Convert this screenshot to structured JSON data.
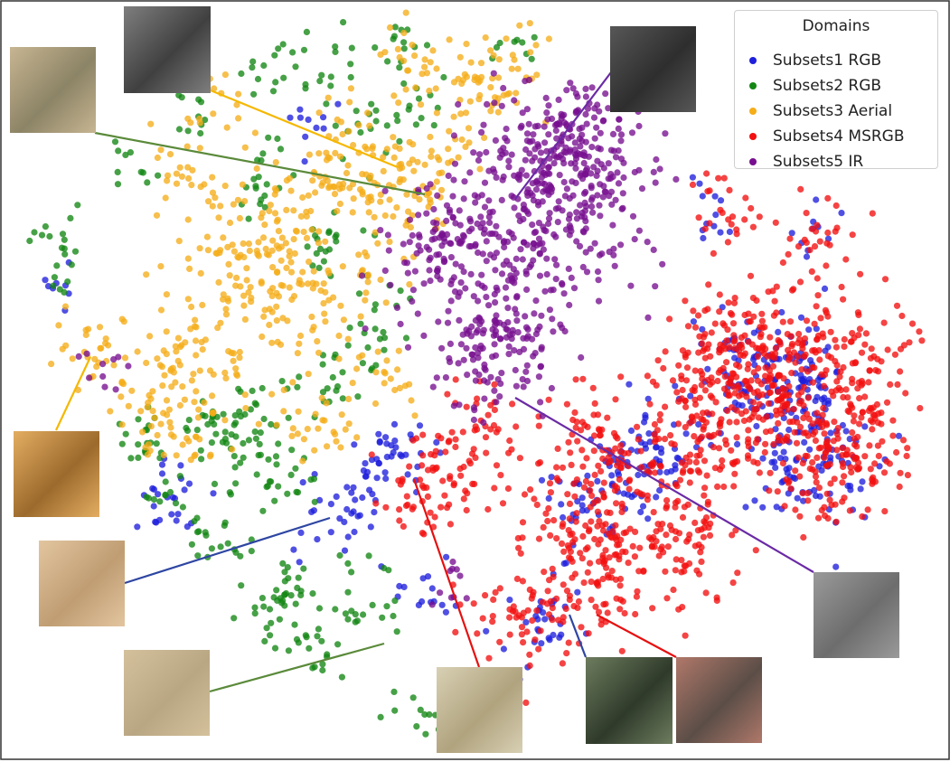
{
  "chart_data": {
    "type": "scatter",
    "title": "",
    "xlabel": "",
    "ylabel": "",
    "grid": false,
    "axes_ticks": false,
    "legend": {
      "title": "Domains",
      "placement": "top-right"
    },
    "series": [
      {
        "name": "Subsets1 RGB",
        "color": "#1f1fdc",
        "clusters": [
          [
            880,
            440,
            80
          ],
          [
            840,
            420,
            90
          ],
          [
            900,
            520,
            70
          ],
          [
            720,
            500,
            60
          ],
          [
            660,
            560,
            50
          ],
          [
            420,
            520,
            40
          ],
          [
            380,
            570,
            30
          ],
          [
            190,
            545,
            25
          ],
          [
            70,
            310,
            8
          ],
          [
            470,
            655,
            15
          ],
          [
            340,
            135,
            10
          ],
          [
            785,
            235,
            12
          ],
          [
            900,
            255,
            10
          ],
          [
            600,
            690,
            30
          ]
        ]
      },
      {
        "name": "Subsets2 RGB",
        "color": "#138713",
        "clusters": [
          [
            270,
            480,
            50
          ],
          [
            160,
            485,
            20
          ],
          [
            250,
            600,
            20
          ],
          [
            410,
            660,
            20
          ],
          [
            320,
            650,
            25
          ],
          [
            350,
            710,
            20
          ],
          [
            300,
            690,
            10
          ],
          [
            460,
            795,
            15
          ],
          [
            140,
            185,
            10
          ],
          [
            55,
            260,
            10
          ],
          [
            70,
            300,
            10
          ],
          [
            220,
            125,
            10
          ],
          [
            290,
            220,
            10
          ],
          [
            300,
            80,
            10
          ],
          [
            330,
            60,
            10
          ],
          [
            380,
            70,
            10
          ],
          [
            440,
            55,
            10
          ],
          [
            570,
            45,
            10
          ],
          [
            460,
            120,
            15
          ],
          [
            410,
            150,
            15
          ],
          [
            370,
            265,
            20
          ],
          [
            400,
            390,
            15
          ],
          [
            430,
            345,
            12
          ],
          [
            360,
            430,
            15
          ],
          [
            320,
            520,
            15
          ],
          [
            180,
            555,
            12
          ],
          [
            290,
            180,
            10
          ],
          [
            230,
            470,
            15
          ]
        ]
      },
      {
        "name": "Subsets3 Aerial",
        "color": "#f5ad19",
        "clusters": [
          [
            300,
            300,
            200
          ],
          [
            200,
            420,
            100
          ],
          [
            390,
            190,
            100
          ],
          [
            460,
            200,
            50
          ],
          [
            520,
            110,
            40
          ],
          [
            570,
            80,
            30
          ],
          [
            450,
            70,
            20
          ],
          [
            90,
            380,
            12
          ],
          [
            110,
            395,
            10
          ],
          [
            195,
            480,
            15
          ],
          [
            210,
            200,
            20
          ],
          [
            240,
            110,
            15
          ],
          [
            360,
            480,
            25
          ],
          [
            430,
            430,
            20
          ]
        ]
      },
      {
        "name": "Subsets4 MSRGB",
        "color": "#f21010",
        "clusters": [
          [
            880,
            440,
            220
          ],
          [
            840,
            410,
            180
          ],
          [
            930,
            510,
            70
          ],
          [
            720,
            520,
            140
          ],
          [
            680,
            620,
            90
          ],
          [
            640,
            590,
            70
          ],
          [
            580,
            690,
            60
          ],
          [
            800,
            230,
            25
          ],
          [
            905,
            255,
            25
          ],
          [
            970,
            380,
            30
          ],
          [
            960,
            480,
            40
          ],
          [
            780,
            430,
            60
          ],
          [
            500,
            520,
            55
          ],
          [
            550,
            500,
            20
          ],
          [
            640,
            480,
            30
          ],
          [
            460,
            560,
            20
          ],
          [
            540,
            445,
            15
          ],
          [
            760,
            600,
            60
          ]
        ]
      },
      {
        "name": "Subsets5 IR",
        "color": "#770f8f",
        "clusters": [
          [
            600,
            230,
            220
          ],
          [
            520,
            310,
            140
          ],
          [
            650,
            200,
            100
          ],
          [
            540,
            410,
            60
          ],
          [
            600,
            160,
            60
          ],
          [
            640,
            130,
            40
          ],
          [
            570,
            370,
            50
          ],
          [
            490,
            260,
            40
          ],
          [
            110,
            405,
            10
          ],
          [
            500,
            645,
            10
          ]
        ]
      }
    ],
    "thumbnails": [
      {
        "id": "airport-runway-green",
        "color": "#5a8a3a",
        "tone": [
          "#c7b592",
          "#8c8466"
        ]
      },
      {
        "id": "airport-buildings-yellow",
        "color": "#f5b800",
        "tone": [
          "#7e7e7e",
          "#404040"
        ]
      },
      {
        "id": "ir-airport-purple-top",
        "color": "#6b2aa5",
        "tone": [
          "#575757",
          "#2e2e2e"
        ]
      },
      {
        "id": "desert-dunes-yellow",
        "color": "#f5b800",
        "tone": [
          "#e3ad62",
          "#9c6a2c"
        ]
      },
      {
        "id": "sand-texture-blue",
        "color": "#2e46a2",
        "tone": [
          "#e2c59f",
          "#c09d73"
        ]
      },
      {
        "id": "plain-sand-green",
        "color": "#5a8a3a",
        "tone": [
          "#d4c19c",
          "#b9a683"
        ]
      },
      {
        "id": "arid-terrain-red",
        "color": "#e61010",
        "tone": [
          "#d8d0b4",
          "#b0a37e"
        ]
      },
      {
        "id": "airport-city-blue",
        "color": "#2e46a2",
        "tone": [
          "#6d7c5e",
          "#2f3a2a"
        ]
      },
      {
        "id": "airport-coast-red",
        "color": "#e61010",
        "tone": [
          "#b0786a",
          "#5b4e47"
        ]
      },
      {
        "id": "ir-surface-purple",
        "color": "#6b2aa5",
        "tone": [
          "#9a9a9a",
          "#6d6d6d"
        ]
      }
    ]
  }
}
